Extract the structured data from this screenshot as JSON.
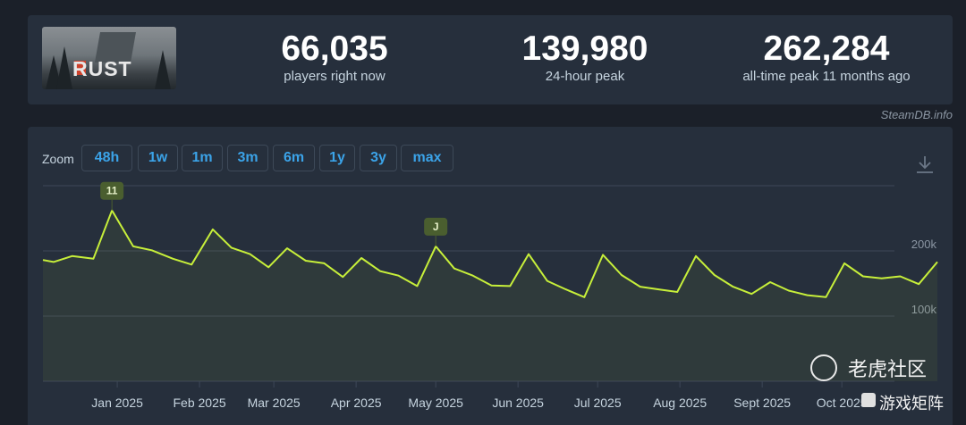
{
  "stats": {
    "logo_text": "RUST",
    "current_players": "66,035",
    "current_players_label": "players right now",
    "peak_24h": "139,980",
    "peak_24h_label": "24-hour peak",
    "all_time_peak": "262,284",
    "all_time_peak_label": "all-time peak 11 months ago"
  },
  "credit": "SteamDB.info",
  "zoom": {
    "label": "Zoom",
    "buttons": [
      "48h",
      "1w",
      "1m",
      "3m",
      "6m",
      "1y",
      "3y",
      "max"
    ]
  },
  "watermark": {
    "text": "老虎社区",
    "text2": "游戏矩阵"
  },
  "colors": {
    "line": "#c7ef3a",
    "flag": "#4a5e2f",
    "grid": "#3d4757",
    "accent": "#3ba3e8"
  },
  "chart_data": {
    "type": "line",
    "title": "",
    "xlabel": "",
    "ylabel": "",
    "ylim": [
      0,
      300000
    ],
    "y_ticks": [
      100000,
      200000
    ],
    "y_tick_labels": [
      "100k",
      "200k"
    ],
    "x_tick_labels": [
      "Jan 2025",
      "Feb 2025",
      "Mar 2025",
      "Apr 2025",
      "May 2025",
      "Jun 2025",
      "Jul 2025",
      "Aug 2025",
      "Sept 2025",
      "Oct 2025"
    ],
    "x_tick_dates": [
      "2025-01-01",
      "2025-02-01",
      "2025-03-01",
      "2025-04-01",
      "2025-05-01",
      "2025-06-01",
      "2025-07-01",
      "2025-08-01",
      "2025-09-01",
      "2025-10-01"
    ],
    "grid": true,
    "series": [
      {
        "values": [
          [
            "2024-12-04",
            186000
          ],
          [
            "2024-12-08",
            183000
          ],
          [
            "2024-12-15",
            192000
          ],
          [
            "2024-12-23",
            188000
          ],
          [
            "2024-12-30",
            262000
          ],
          [
            "2025-01-07",
            207000
          ],
          [
            "2025-01-14",
            201000
          ],
          [
            "2025-01-22",
            188000
          ],
          [
            "2025-01-29",
            179000
          ],
          [
            "2025-02-06",
            233000
          ],
          [
            "2025-02-13",
            205000
          ],
          [
            "2025-02-20",
            195000
          ],
          [
            "2025-02-27",
            175000
          ],
          [
            "2025-03-06",
            204000
          ],
          [
            "2025-03-13",
            185000
          ],
          [
            "2025-03-20",
            181000
          ],
          [
            "2025-03-27",
            160000
          ],
          [
            "2025-04-03",
            189000
          ],
          [
            "2025-04-10",
            169000
          ],
          [
            "2025-04-17",
            162000
          ],
          [
            "2025-04-24",
            146000
          ],
          [
            "2025-05-01",
            207000
          ],
          [
            "2025-05-08",
            173000
          ],
          [
            "2025-05-15",
            162000
          ],
          [
            "2025-05-22",
            147000
          ],
          [
            "2025-05-29",
            146000
          ],
          [
            "2025-06-05",
            195000
          ],
          [
            "2025-06-12",
            154000
          ],
          [
            "2025-06-19",
            141000
          ],
          [
            "2025-06-26",
            129000
          ],
          [
            "2025-07-03",
            194000
          ],
          [
            "2025-07-10",
            163000
          ],
          [
            "2025-07-17",
            145000
          ],
          [
            "2025-07-24",
            141000
          ],
          [
            "2025-07-31",
            137000
          ],
          [
            "2025-08-07",
            192000
          ],
          [
            "2025-08-14",
            163000
          ],
          [
            "2025-08-21",
            145000
          ],
          [
            "2025-08-28",
            134000
          ],
          [
            "2025-09-04",
            152000
          ],
          [
            "2025-09-11",
            139000
          ],
          [
            "2025-09-18",
            132000
          ],
          [
            "2025-09-25",
            129000
          ],
          [
            "2025-10-02",
            181000
          ],
          [
            "2025-10-09",
            161000
          ],
          [
            "2025-10-16",
            158000
          ],
          [
            "2025-10-23",
            161000
          ],
          [
            "2025-10-30",
            149000
          ],
          [
            "2025-11-06",
            183000
          ]
        ]
      }
    ],
    "annotations": [
      {
        "date": "2024-12-30",
        "label": "11"
      },
      {
        "date": "2025-05-01",
        "label": "J"
      }
    ]
  }
}
